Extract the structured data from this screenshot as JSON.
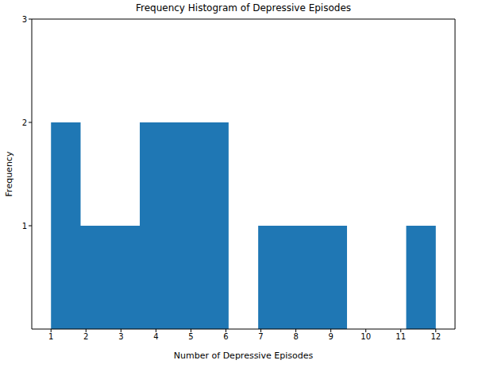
{
  "chart_data": {
    "type": "histogram",
    "title": "Frequency Histogram of Depressive Episodes",
    "x_label": "Number of Depressive Episodes",
    "y_label": "Frequency",
    "bins": [
      1,
      1.846,
      2.692,
      3.538,
      4.385,
      5.231,
      6.077,
      6.923,
      7.769,
      8.615,
      9.462,
      10.308,
      11.154,
      12
    ],
    "counts": [
      2,
      1,
      1,
      2,
      2,
      2,
      0,
      1,
      1,
      1,
      0,
      0,
      1
    ],
    "color": "#1f77b4",
    "xlim": [
      0.45,
      12.55
    ],
    "xticks": [
      1,
      2,
      3,
      4,
      5,
      6,
      7,
      8,
      9,
      10,
      11,
      12
    ],
    "ylim": [
      0,
      3
    ],
    "yticks": [
      1,
      2,
      3
    ],
    "grid": false
  }
}
